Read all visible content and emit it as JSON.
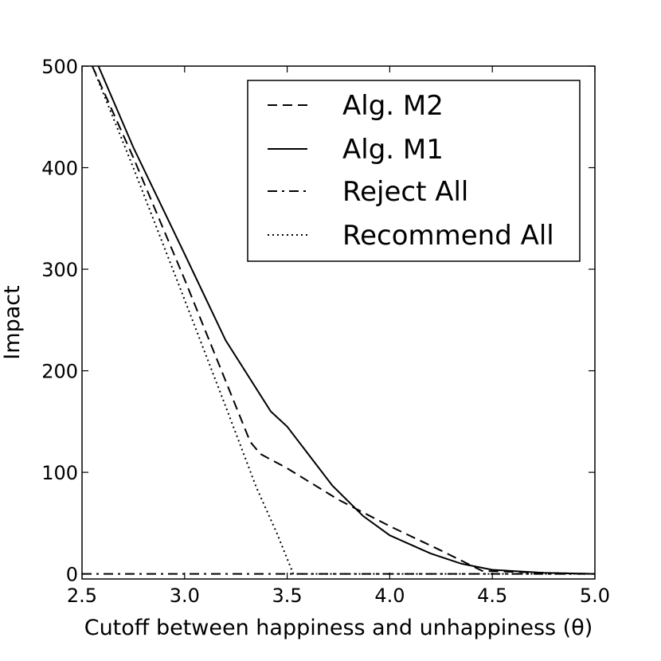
{
  "chart_data": {
    "type": "line",
    "title": "",
    "xlabel": "Cutoff between happiness and unhappiness (θ)",
    "ylabel": "Impact",
    "xlim": [
      2.5,
      5.0
    ],
    "ylim": [
      -5,
      500
    ],
    "xticks": [
      "2.5",
      "3.0",
      "3.5",
      "4.0",
      "4.5",
      "5.0"
    ],
    "xtick_values": [
      2.5,
      3.0,
      3.5,
      4.0,
      4.5,
      5.0
    ],
    "yticks": [
      "0",
      "100",
      "200",
      "300",
      "400",
      "500"
    ],
    "ytick_values": [
      0,
      100,
      200,
      300,
      400,
      500
    ],
    "grid": false,
    "legend_position": "top-right",
    "series": [
      {
        "name": "Alg. M2",
        "style": "dashed",
        "color": "#000000",
        "points": [
          [
            2.55,
            500
          ],
          [
            2.75,
            410
          ],
          [
            3.0,
            290
          ],
          [
            3.2,
            190
          ],
          [
            3.32,
            130
          ],
          [
            3.37,
            118
          ],
          [
            3.5,
            104
          ],
          [
            3.75,
            73
          ],
          [
            4.0,
            47
          ],
          [
            4.25,
            23
          ],
          [
            4.45,
            3
          ],
          [
            4.75,
            1
          ],
          [
            5.0,
            0
          ]
        ]
      },
      {
        "name": "Alg. M1",
        "style": "solid",
        "color": "#000000",
        "points": [
          [
            2.58,
            500
          ],
          [
            2.75,
            420
          ],
          [
            3.0,
            315
          ],
          [
            3.2,
            230
          ],
          [
            3.42,
            160
          ],
          [
            3.5,
            145
          ],
          [
            3.72,
            87
          ],
          [
            3.87,
            57
          ],
          [
            4.0,
            38
          ],
          [
            4.2,
            20
          ],
          [
            4.35,
            10
          ],
          [
            4.5,
            4
          ],
          [
            4.75,
            1
          ],
          [
            5.0,
            0
          ]
        ]
      },
      {
        "name": "Reject All",
        "style": "dashdot",
        "color": "#000000",
        "points": [
          [
            2.5,
            0
          ],
          [
            5.0,
            0
          ]
        ]
      },
      {
        "name": "Recommend All",
        "style": "dotted",
        "color": "#000000",
        "points": [
          [
            2.55,
            500
          ],
          [
            2.75,
            400
          ],
          [
            3.0,
            270
          ],
          [
            3.2,
            165
          ],
          [
            3.35,
            85
          ],
          [
            3.45,
            40
          ],
          [
            3.53,
            0
          ],
          [
            5.0,
            0
          ]
        ]
      }
    ]
  }
}
